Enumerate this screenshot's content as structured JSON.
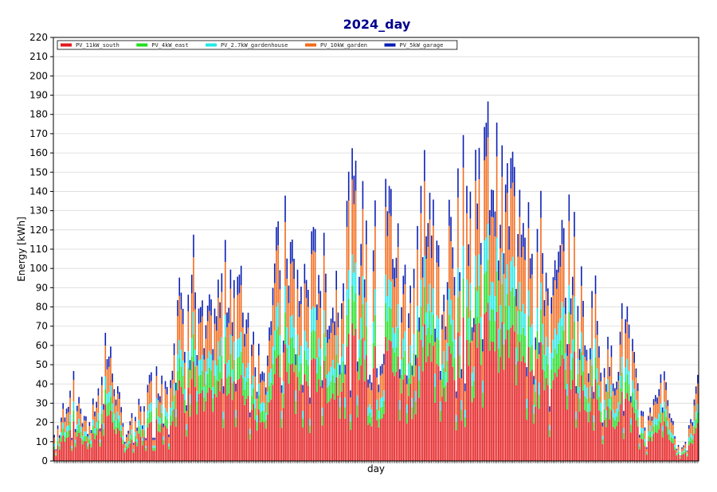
{
  "chart_data": {
    "type": "bar",
    "stacked": true,
    "title": "2024_day",
    "title_color": "#00008b",
    "xlabel": "day",
    "ylabel": "Energy [kWh]",
    "ylim": [
      0,
      220
    ],
    "yticks": [
      0,
      10,
      20,
      30,
      40,
      50,
      60,
      70,
      80,
      90,
      100,
      110,
      120,
      130,
      140,
      150,
      160,
      170,
      180,
      190,
      200,
      210,
      220
    ],
    "grid": "horizontal",
    "legend_position": "top-left",
    "days": 366,
    "envelope_note_x_in_days": true,
    "series": [
      {
        "name": "PV_11kW_south",
        "color": "#e41a1c",
        "share": 0.44
      },
      {
        "name": "PV_4kW_east",
        "color": "#22dd22",
        "share": 0.12
      },
      {
        "name": "PV_2.7kW_gardenhouse",
        "color": "#22e8e8",
        "share": 0.1
      },
      {
        "name": "PV_10kW_garden",
        "color": "#f26b1d",
        "share": 0.24
      },
      {
        "name": "PV_5kW_garage",
        "color": "#0a1eb4",
        "share": 0.1
      }
    ],
    "daily_total_envelope": [
      {
        "day": 0,
        "total": 15
      },
      {
        "day": 10,
        "total": 45
      },
      {
        "day": 20,
        "total": 25
      },
      {
        "day": 25,
        "total": 40
      },
      {
        "day": 28,
        "total": 75
      },
      {
        "day": 35,
        "total": 45
      },
      {
        "day": 40,
        "total": 15
      },
      {
        "day": 50,
        "total": 35
      },
      {
        "day": 55,
        "total": 45
      },
      {
        "day": 65,
        "total": 55
      },
      {
        "day": 70,
        "total": 85
      },
      {
        "day": 78,
        "total": 118
      },
      {
        "day": 85,
        "total": 70
      },
      {
        "day": 95,
        "total": 100
      },
      {
        "day": 100,
        "total": 112
      },
      {
        "day": 110,
        "total": 85
      },
      {
        "day": 118,
        "total": 62
      },
      {
        "day": 125,
        "total": 110
      },
      {
        "day": 132,
        "total": 130
      },
      {
        "day": 140,
        "total": 100
      },
      {
        "day": 150,
        "total": 120
      },
      {
        "day": 158,
        "total": 90
      },
      {
        "day": 165,
        "total": 140
      },
      {
        "day": 170,
        "total": 150
      },
      {
        "day": 180,
        "total": 120
      },
      {
        "day": 190,
        "total": 150
      },
      {
        "day": 198,
        "total": 100
      },
      {
        "day": 205,
        "total": 130
      },
      {
        "day": 210,
        "total": 160
      },
      {
        "day": 220,
        "total": 110
      },
      {
        "day": 230,
        "total": 150
      },
      {
        "day": 240,
        "total": 170
      },
      {
        "day": 248,
        "total": 180
      },
      {
        "day": 255,
        "total": 145
      },
      {
        "day": 262,
        "total": 170
      },
      {
        "day": 268,
        "total": 158
      },
      {
        "day": 276,
        "total": 130
      },
      {
        "day": 282,
        "total": 90
      },
      {
        "day": 290,
        "total": 130
      },
      {
        "day": 296,
        "total": 120
      },
      {
        "day": 302,
        "total": 80
      },
      {
        "day": 306,
        "total": 100
      },
      {
        "day": 310,
        "total": 65
      },
      {
        "day": 318,
        "total": 55
      },
      {
        "day": 324,
        "total": 88
      },
      {
        "day": 330,
        "total": 45
      },
      {
        "day": 336,
        "total": 20
      },
      {
        "day": 342,
        "total": 45
      },
      {
        "day": 346,
        "total": 56
      },
      {
        "day": 352,
        "total": 12
      },
      {
        "day": 358,
        "total": 10
      },
      {
        "day": 362,
        "total": 30
      },
      {
        "day": 365,
        "total": 50
      }
    ]
  }
}
